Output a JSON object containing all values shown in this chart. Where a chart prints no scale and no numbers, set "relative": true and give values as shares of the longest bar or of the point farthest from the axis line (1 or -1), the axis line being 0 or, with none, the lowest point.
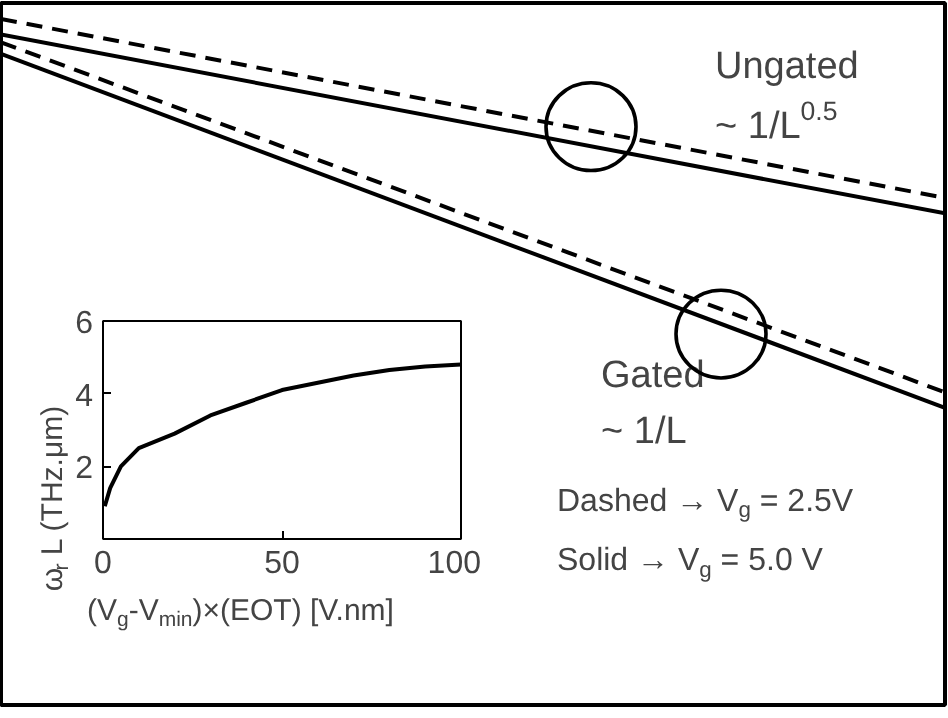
{
  "chart_data": [
    {
      "type": "line",
      "relative": true,
      "categories": [
        null,
        null
      ],
      "line_style": "solid",
      "marker": "none",
      "grid": false,
      "series": [
        {
          "color": "#000000",
          "line_style": "dashed",
          "values": [
            1,
            0.54
          ]
        },
        {
          "color": "#000000",
          "line_style": "solid",
          "values": [
            0.96,
            0.5
          ]
        },
        {
          "color": "#000000",
          "line_style": "dashed",
          "values": [
            0.94,
            0.04
          ]
        },
        {
          "color": "#000000",
          "line_style": "solid",
          "values": [
            0.91,
            0
          ]
        }
      ],
      "annotations": [
        "Ungated",
        "~ 1/L$^{0.5}$",
        "Gated",
        "~ 1/L",
        "Dashed → V$_{g}$ = 2.5V",
        "Solid → V$_{g}$ = 5.0 V"
      ]
    },
    {
      "type": "line",
      "xlabel": "(V$_{g}$-V$_{min}$)×(EOT) [V.nm]",
      "ylabel": "ω$_{r}$ L (THz.μm)",
      "x": [
        0.5,
        2,
        5,
        10,
        20,
        30,
        40,
        50,
        60,
        70,
        80,
        90,
        100
      ],
      "values": [
        0.9,
        1.4,
        2.0,
        2.5,
        2.9,
        3.4,
        3.75,
        4.1,
        4.3,
        4.5,
        4.65,
        4.75,
        4.8
      ],
      "color": "#000000",
      "xlim": [
        0,
        100
      ],
      "ylim": [
        0,
        6
      ],
      "xticks": [
        0,
        50,
        100
      ],
      "yticks": [
        2,
        4,
        6
      ],
      "grid": false,
      "marker": "none",
      "line_style": "solid"
    }
  ]
}
